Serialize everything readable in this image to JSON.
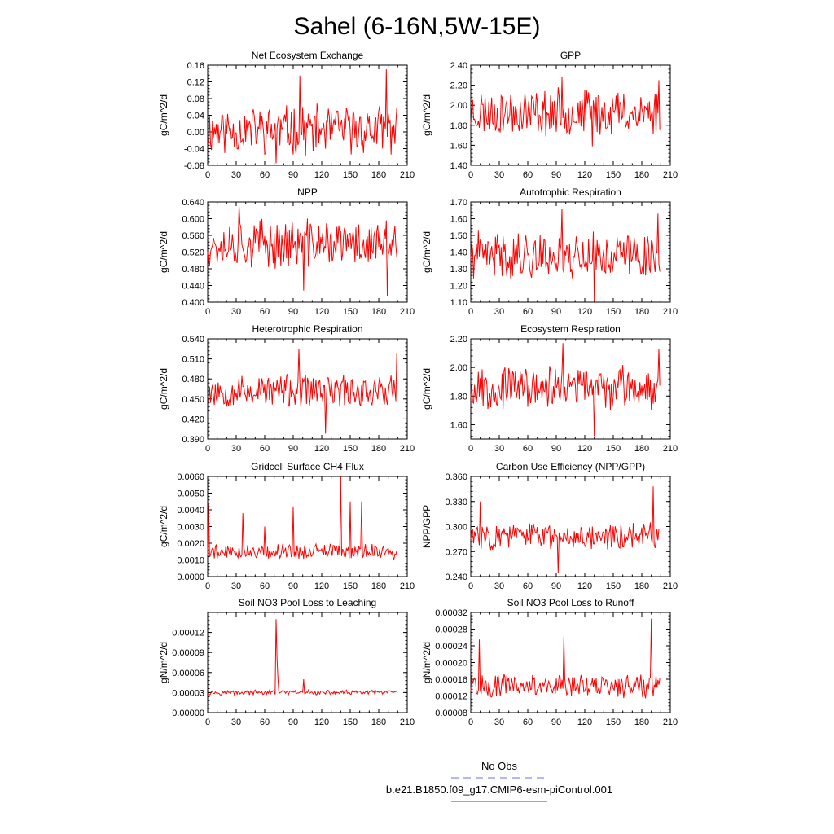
{
  "figure": {
    "title": "Sahel (6-16N,5W-15E)",
    "colors": {
      "series": "#ff0000",
      "obs": "#6a6aff",
      "frame": "#000000"
    }
  },
  "legend": {
    "entries": [
      {
        "label": "No Obs",
        "style": "dashed",
        "color": "#6a6aff"
      },
      {
        "label": "b.e21.B1850.f09_g17.CMIP6-esm-piControl.001",
        "style": "solid",
        "color": "#ff0000"
      }
    ]
  },
  "chart_data": [
    {
      "type": "line",
      "title": "Net Ecosystem Exchange",
      "ylabel": "gC/m^2/d",
      "xlim": [
        0,
        210
      ],
      "ylim": [
        -0.08,
        0.16
      ],
      "xticks": [
        "0",
        "30",
        "60",
        "90",
        "120",
        "150",
        "180",
        "210"
      ],
      "yticks": [
        "-0.08",
        "-0.04",
        "0.00",
        "0.04",
        "0.08",
        "0.12",
        "0.16"
      ],
      "series": [
        {
          "name": "b.e21.B1850.f09_g17.CMIP6-esm-piControl.001",
          "seed": 11,
          "base": 0.005,
          "amp": 0.05,
          "spikes": [
            [
              97,
              0.135
            ],
            [
              188,
              0.15
            ],
            [
              72,
              -0.075
            ]
          ]
        }
      ]
    },
    {
      "type": "line",
      "title": "GPP",
      "ylabel": "gC/m^2/d",
      "xlim": [
        0,
        210
      ],
      "ylim": [
        1.4,
        2.4
      ],
      "xticks": [
        "0",
        "30",
        "60",
        "90",
        "120",
        "150",
        "180",
        "210"
      ],
      "yticks": [
        "1.40",
        "1.60",
        "1.80",
        "2.00",
        "2.20",
        "2.40"
      ],
      "series": [
        {
          "name": "b.e21.B1850.f09_g17.CMIP6-esm-piControl.001",
          "seed": 23,
          "base": 1.93,
          "amp": 0.2,
          "spikes": [
            [
              96,
              2.28
            ],
            [
              198,
              2.25
            ],
            [
              128,
              1.59
            ]
          ]
        }
      ]
    },
    {
      "type": "line",
      "title": "NPP",
      "ylabel": "gC/m^2/d",
      "xlim": [
        0,
        210
      ],
      "ylim": [
        0.4,
        0.64
      ],
      "xticks": [
        "0",
        "30",
        "60",
        "90",
        "120",
        "150",
        "180",
        "210"
      ],
      "yticks": [
        "0.400",
        "0.440",
        "0.480",
        "0.520",
        "0.560",
        "0.600",
        "0.640"
      ],
      "series": [
        {
          "name": "b.e21.B1850.f09_g17.CMIP6-esm-piControl.001",
          "seed": 37,
          "base": 0.54,
          "amp": 0.05,
          "spikes": [
            [
              33,
              0.632
            ],
            [
              101,
              0.428
            ],
            [
              189,
              0.415
            ]
          ]
        }
      ]
    },
    {
      "type": "line",
      "title": "Autotrophic Respiration",
      "ylabel": "gC/m^2/d",
      "xlim": [
        0,
        210
      ],
      "ylim": [
        1.1,
        1.7
      ],
      "xticks": [
        "0",
        "30",
        "60",
        "90",
        "120",
        "150",
        "180",
        "210"
      ],
      "yticks": [
        "1.10",
        "1.20",
        "1.30",
        "1.40",
        "1.50",
        "1.60",
        "1.70"
      ],
      "series": [
        {
          "name": "b.e21.B1850.f09_g17.CMIP6-esm-piControl.001",
          "seed": 41,
          "base": 1.38,
          "amp": 0.12,
          "spikes": [
            [
              96,
              1.66
            ],
            [
              130,
              1.11
            ],
            [
              197,
              1.63
            ]
          ]
        }
      ]
    },
    {
      "type": "line",
      "title": "Heterotrophic Respiration",
      "ylabel": "gC/m^2/d",
      "xlim": [
        0,
        210
      ],
      "ylim": [
        0.39,
        0.54
      ],
      "xticks": [
        "0",
        "30",
        "60",
        "90",
        "120",
        "150",
        "180",
        "210"
      ],
      "yticks": [
        "0.390",
        "0.420",
        "0.450",
        "0.480",
        "0.510",
        "0.540"
      ],
      "series": [
        {
          "name": "b.e21.B1850.f09_g17.CMIP6-esm-piControl.001",
          "seed": 53,
          "base": 0.462,
          "amp": 0.022,
          "spikes": [
            [
              96,
              0.525
            ],
            [
              199,
              0.518
            ],
            [
              124,
              0.398
            ]
          ]
        }
      ]
    },
    {
      "type": "line",
      "title": "Ecosystem Respiration",
      "ylabel": "gC/m^2/d",
      "xlim": [
        0,
        210
      ],
      "ylim": [
        1.5,
        2.2
      ],
      "xticks": [
        "0",
        "30",
        "60",
        "90",
        "120",
        "150",
        "180",
        "210"
      ],
      "yticks": [
        "1.60",
        "1.80",
        "2.00",
        "2.20"
      ],
      "series": [
        {
          "name": "b.e21.B1850.f09_g17.CMIP6-esm-piControl.001",
          "seed": 67,
          "base": 1.86,
          "amp": 0.13,
          "spikes": [
            [
              97,
              2.17
            ],
            [
              130,
              1.52
            ],
            [
              198,
              2.13
            ]
          ]
        }
      ]
    },
    {
      "type": "line",
      "title": "Gridcell Surface CH4 Flux",
      "ylabel": "gC/m^2/d",
      "xlim": [
        0,
        210
      ],
      "ylim": [
        0,
        0.006
      ],
      "xticks": [
        "0",
        "30",
        "60",
        "90",
        "120",
        "150",
        "180",
        "210"
      ],
      "yticks": [
        "0.0000",
        "0.0010",
        "0.0020",
        "0.0030",
        "0.0040",
        "0.0050",
        "0.0060"
      ],
      "series": [
        {
          "name": "b.e21.B1850.f09_g17.CMIP6-esm-piControl.001",
          "seed": 79,
          "base": 0.0015,
          "amp": 0.0004,
          "spikes": [
            [
              1,
              0.0044
            ],
            [
              140,
              0.006
            ],
            [
              150,
              0.0045
            ],
            [
              162,
              0.0045
            ],
            [
              90,
              0.0042
            ],
            [
              37,
              0.0038
            ],
            [
              60,
              0.003
            ]
          ]
        }
      ]
    },
    {
      "type": "line",
      "title": "Carbon Use Efficiency (NPP/GPP)",
      "ylabel": "NPP/GPP",
      "xlim": [
        0,
        210
      ],
      "ylim": [
        0.24,
        0.36
      ],
      "xticks": [
        "0",
        "30",
        "60",
        "90",
        "120",
        "150",
        "180",
        "210"
      ],
      "yticks": [
        "0.240",
        "0.270",
        "0.300",
        "0.330",
        "0.360"
      ],
      "series": [
        {
          "name": "b.e21.B1850.f09_g17.CMIP6-esm-piControl.001",
          "seed": 83,
          "base": 0.289,
          "amp": 0.014,
          "spikes": [
            [
              192,
              0.348
            ],
            [
              92,
              0.244
            ],
            [
              10,
              0.33
            ]
          ]
        }
      ]
    },
    {
      "type": "line",
      "title": "Soil NO3 Pool Loss to Leaching",
      "ylabel": "gN/m^2/d",
      "xlim": [
        0,
        210
      ],
      "ylim": [
        0,
        0.00015
      ],
      "xticks": [
        "0",
        "30",
        "60",
        "90",
        "120",
        "150",
        "180",
        "210"
      ],
      "yticks": [
        "0.00000",
        "0.00003",
        "0.00006",
        "0.00009",
        "0.00012"
      ],
      "series": [
        {
          "name": "b.e21.B1850.f09_g17.CMIP6-esm-piControl.001",
          "seed": 97,
          "base": 3e-05,
          "amp": 3e-06,
          "spikes": [
            [
              72,
              0.00014
            ],
            [
              73,
              8e-05
            ],
            [
              74,
              5e-05
            ],
            [
              101,
              5e-05
            ]
          ]
        }
      ]
    },
    {
      "type": "line",
      "title": "Soil NO3 Pool Loss to Runoff",
      "ylabel": "gN/m^2/d",
      "xlim": [
        0,
        210
      ],
      "ylim": [
        8e-05,
        0.00032
      ],
      "xticks": [
        "0",
        "30",
        "60",
        "90",
        "120",
        "150",
        "180",
        "210"
      ],
      "yticks": [
        "0.00008",
        "0.00012",
        "0.00016",
        "0.00020",
        "0.00024",
        "0.00028",
        "0.00032"
      ],
      "series": [
        {
          "name": "b.e21.B1850.f09_g17.CMIP6-esm-piControl.001",
          "seed": 101,
          "base": 0.000145,
          "amp": 2.5e-05,
          "spikes": [
            [
              190,
              0.000305
            ],
            [
              9,
              0.000255
            ],
            [
              98,
              0.000262
            ]
          ]
        }
      ]
    }
  ]
}
